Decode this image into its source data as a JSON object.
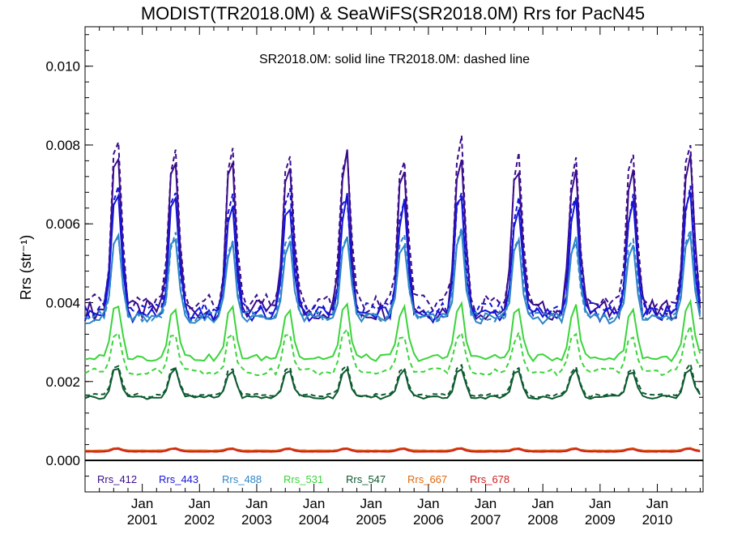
{
  "chart_data": {
    "type": "line",
    "title": "MODIST(TR2018.0M) & SeaWiFS(SR2018.0M)  Rrs for PacN45",
    "annotation": "SR2018.0M: solid line   TR2018.0M: dashed line",
    "ylabel": "Rrs (str⁻¹)",
    "xlabel": "",
    "xlim": [
      2000.0,
      2010.8
    ],
    "ylim": [
      -0.0008,
      0.011
    ],
    "yticks": [
      "0.000",
      "0.002",
      "0.004",
      "0.006",
      "0.008",
      "0.010"
    ],
    "xtick_labels": [
      {
        "line1": "Jan",
        "line2": "2001"
      },
      {
        "line1": "Jan",
        "line2": "2002"
      },
      {
        "line1": "Jan",
        "line2": "2003"
      },
      {
        "line1": "Jan",
        "line2": "2004"
      },
      {
        "line1": "Jan",
        "line2": "2005"
      },
      {
        "line1": "Jan",
        "line2": "2006"
      },
      {
        "line1": "Jan",
        "line2": "2007"
      },
      {
        "line1": "Jan",
        "line2": "2008"
      },
      {
        "line1": "Jan",
        "line2": "2009"
      },
      {
        "line1": "Jan",
        "line2": "2010"
      }
    ],
    "legend_placement": "bottom-left, inside plot",
    "zero_line": true,
    "model": {
      "x_start": 2000.0,
      "x_end": 2010.8,
      "step_years": 0.0833,
      "peak_amplitude_by_year": [
        1.0,
        0.95,
        0.9,
        0.93,
        0.96,
        0.9,
        1.0,
        0.9,
        0.92,
        0.88,
        1.0
      ],
      "peak_phase": 0.55
    },
    "series": [
      {
        "name": "Rrs_412",
        "color": "#3a0d8a",
        "base": 0.0038,
        "summer_peak": 0.0082,
        "dashed_offset": 0.0003
      },
      {
        "name": "Rrs_443",
        "color": "#1515d8",
        "base": 0.0037,
        "summer_peak": 0.007,
        "dashed_offset": 0.0002
      },
      {
        "name": "Rrs_488",
        "color": "#2f86c8",
        "base": 0.0036,
        "summer_peak": 0.0059,
        "dashed_offset": 0.0001
      },
      {
        "name": "Rrs_531",
        "color": "#3bd43b",
        "base": 0.0026,
        "summer_peak": 0.0041,
        "dashed_offset": -0.0007
      },
      {
        "name": "Rrs_547",
        "color": "#0d5a30",
        "base": 0.0016,
        "summer_peak": 0.0024,
        "dashed_offset": 0.0001
      },
      {
        "name": "Rrs_667",
        "color": "#e06a10",
        "base": 0.00025,
        "summer_peak": 0.00032,
        "dashed_offset": 0.0
      },
      {
        "name": "Rrs_678",
        "color": "#cc2020",
        "base": 0.00022,
        "summer_peak": 0.0003,
        "dashed_offset": 0.0
      }
    ]
  }
}
